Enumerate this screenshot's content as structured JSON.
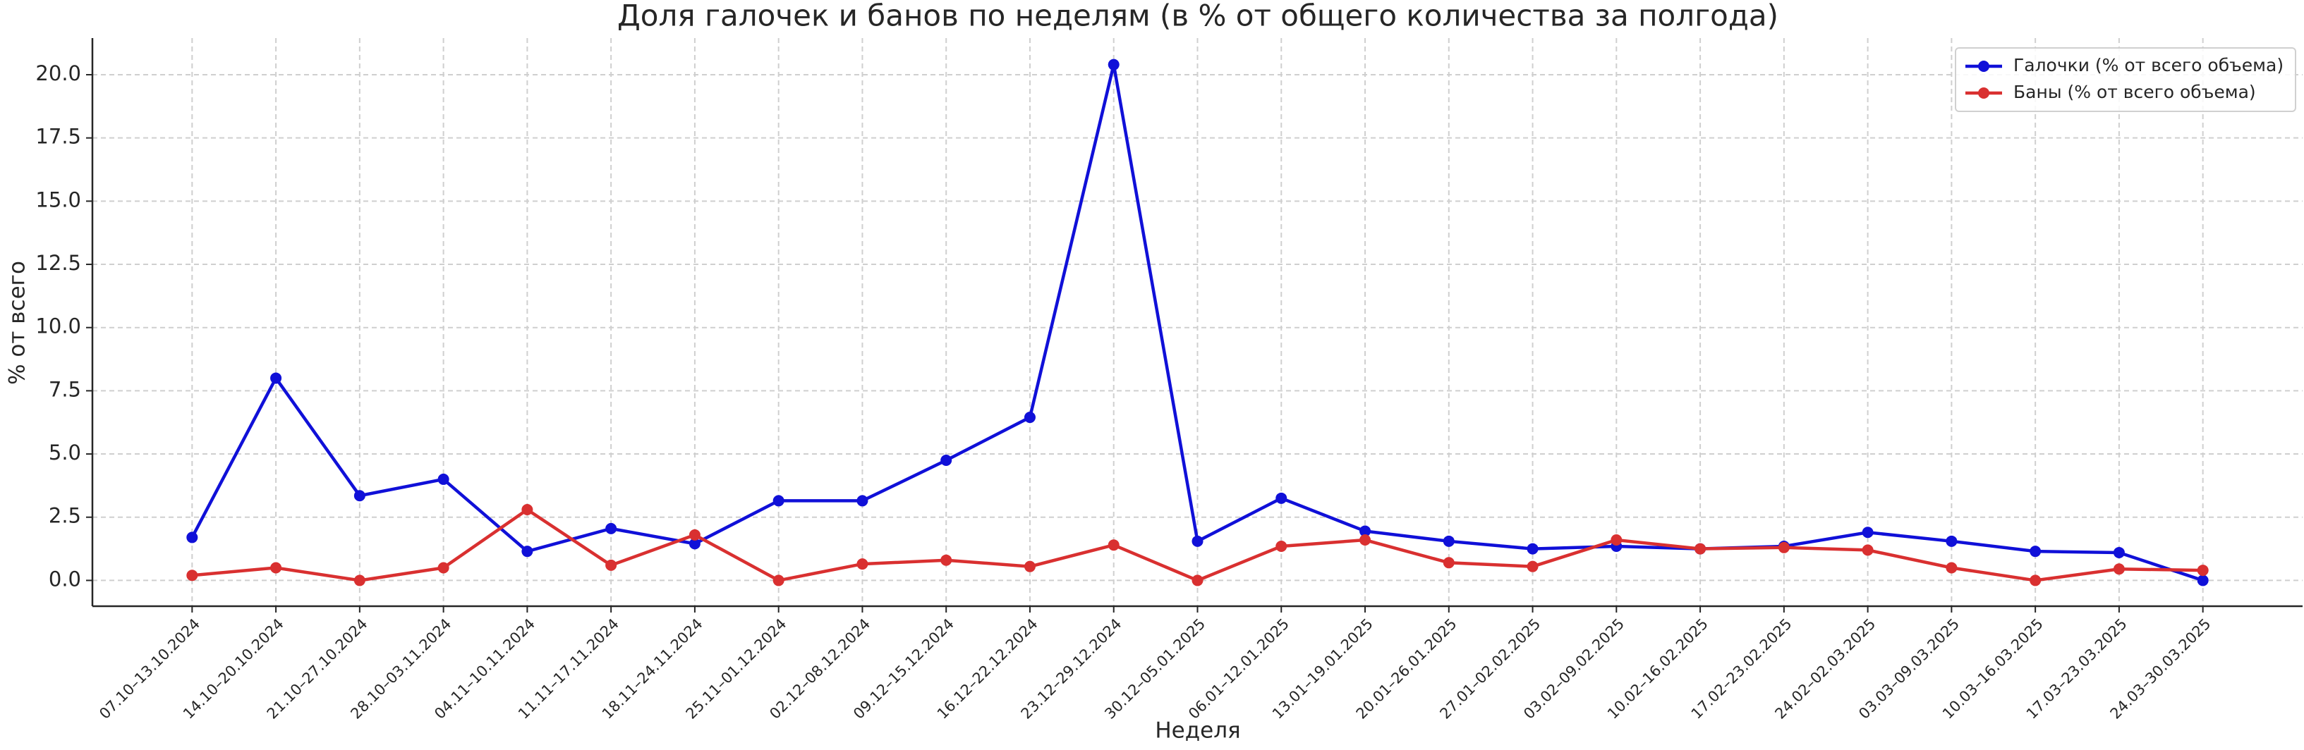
{
  "chart_data": {
    "type": "line",
    "title": "Доля галочек и банов по неделям (в % от общего количества за полгода)",
    "x_label": "Неделя",
    "y_label": "% от всего",
    "categories": [
      "07.10–13.10.2024",
      "14.10–20.10.2024",
      "21.10–27.10.2024",
      "28.10–03.11.2024",
      "04.11–10.11.2024",
      "11.11–17.11.2024",
      "18.11–24.11.2024",
      "25.11–01.12.2024",
      "02.12–08.12.2024",
      "09.12–15.12.2024",
      "16.12–22.12.2024",
      "23.12–29.12.2024",
      "30.12–05.01.2025",
      "06.01–12.01.2025",
      "13.01–19.01.2025",
      "20.01–26.01.2025",
      "27.01–02.02.2025",
      "03.02–09.02.2025",
      "10.02–16.02.2025",
      "17.02–23.02.2025",
      "24.02–02.03.2025",
      "03.03–09.03.2025",
      "10.03–16.03.2025",
      "17.03–23.03.2025",
      "24.03–30.03.2025"
    ],
    "series": [
      {
        "name": "Галочки (% от всего объема)",
        "color": "#1010d8",
        "values": [
          1.7,
          8.0,
          3.35,
          4.0,
          1.15,
          2.05,
          1.45,
          3.15,
          3.15,
          4.75,
          6.45,
          20.4,
          1.55,
          3.25,
          1.95,
          1.55,
          1.25,
          1.35,
          1.25,
          1.35,
          1.9,
          1.55,
          1.15,
          1.1,
          0.0
        ]
      },
      {
        "name": "Баны (% от всего объема)",
        "color": "#d93030",
        "values": [
          0.2,
          0.5,
          0.0,
          0.5,
          2.8,
          0.6,
          1.8,
          0.0,
          0.65,
          0.8,
          0.55,
          1.4,
          0.0,
          1.35,
          1.6,
          0.7,
          0.55,
          1.6,
          1.25,
          1.3,
          1.2,
          0.5,
          0.0,
          0.45,
          0.4
        ]
      }
    ],
    "ylim": [
      -1.02,
      21.45
    ],
    "yticks": [
      {
        "value": 0,
        "label": "0.0"
      },
      {
        "value": 2.5,
        "label": "2.5"
      },
      {
        "value": 5,
        "label": "5.0"
      },
      {
        "value": 7.5,
        "label": "7.5"
      },
      {
        "value": 10,
        "label": "10.0"
      },
      {
        "value": 12.5,
        "label": "12.5"
      },
      {
        "value": 15,
        "label": "15.0"
      },
      {
        "value": 17.5,
        "label": "17.5"
      },
      {
        "value": 20,
        "label": "20.0"
      }
    ],
    "grid": true,
    "legend": "upper right"
  }
}
